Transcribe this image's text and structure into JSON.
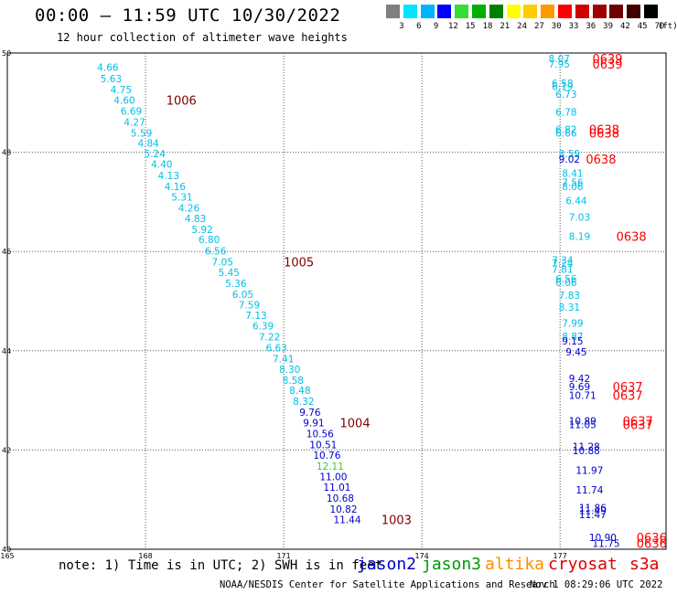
{
  "title": "00:00 — 11:59 UTC 10/30/2022",
  "subtitle": "12 hour collection of altimeter wave heights",
  "legend": {
    "unit": "(ft)",
    "bins": [
      {
        "label": "3",
        "color": "#7f7f7f"
      },
      {
        "label": "6",
        "color": "#00e5ff"
      },
      {
        "label": "9",
        "color": "#00b3ff"
      },
      {
        "label": "12",
        "color": "#0000ff"
      },
      {
        "label": "15",
        "color": "#33dd33"
      },
      {
        "label": "18",
        "color": "#00b000"
      },
      {
        "label": "21",
        "color": "#008000"
      },
      {
        "label": "24",
        "color": "#ffff00"
      },
      {
        "label": "27",
        "color": "#ffcc00"
      },
      {
        "label": "30",
        "color": "#ff9900"
      },
      {
        "label": "33",
        "color": "#ff0000"
      },
      {
        "label": "36",
        "color": "#d00000"
      },
      {
        "label": "39",
        "color": "#a00000"
      },
      {
        "label": "42",
        "color": "#700000"
      },
      {
        "label": "45",
        "color": "#400000"
      },
      {
        "label": "70",
        "color": "#000000"
      }
    ]
  },
  "axes": {
    "lon_ticks": [
      "165",
      "168",
      "171",
      "174",
      "177"
    ],
    "lat_ticks": [
      "50",
      "48",
      "46",
      "44",
      "42",
      "40"
    ],
    "lon_range": [
      165,
      179.3
    ],
    "lat_range": [
      40,
      50
    ]
  },
  "colors": {
    "cyan": "#00bfe5",
    "blue": "#0000cc",
    "green": "#33cc33",
    "red": "#ff0000",
    "maroon": "#800000"
  },
  "tracks": [
    {
      "name": "western-track",
      "marks": [
        {
          "lon": 166.95,
          "lat": 49.71,
          "text": "4.66",
          "color": "cyan"
        },
        {
          "lon": 167.02,
          "lat": 49.48,
          "text": "5.63",
          "color": "cyan"
        },
        {
          "lon": 167.24,
          "lat": 49.26,
          "text": "4.75",
          "color": "cyan"
        },
        {
          "lon": 167.31,
          "lat": 49.05,
          "text": "4.60",
          "color": "cyan"
        },
        {
          "lon": 167.46,
          "lat": 48.83,
          "text": "6.69",
          "color": "cyan"
        },
        {
          "lon": 167.53,
          "lat": 48.61,
          "text": "4.27",
          "color": "cyan"
        },
        {
          "lon": 167.68,
          "lat": 48.39,
          "text": "5.59",
          "color": "cyan"
        },
        {
          "lon": 167.83,
          "lat": 48.19,
          "text": "4.84",
          "color": "cyan"
        },
        {
          "lon": 167.97,
          "lat": 47.97,
          "text": "5.24",
          "color": "cyan"
        },
        {
          "lon": 168.12,
          "lat": 47.76,
          "text": "4.40",
          "color": "cyan"
        },
        {
          "lon": 168.27,
          "lat": 47.53,
          "text": "4.13",
          "color": "cyan"
        },
        {
          "lon": 168.41,
          "lat": 47.31,
          "text": "4.16",
          "color": "cyan"
        },
        {
          "lon": 168.56,
          "lat": 47.1,
          "text": "5.31",
          "color": "cyan"
        },
        {
          "lon": 168.71,
          "lat": 46.88,
          "text": "4.26",
          "color": "cyan"
        },
        {
          "lon": 168.85,
          "lat": 46.67,
          "text": "4.83",
          "color": "cyan"
        },
        {
          "lon": 169.0,
          "lat": 46.45,
          "text": "5.92",
          "color": "cyan"
        },
        {
          "lon": 169.15,
          "lat": 46.24,
          "text": "6.80",
          "color": "cyan"
        },
        {
          "lon": 169.29,
          "lat": 46.01,
          "text": "6.56",
          "color": "cyan"
        },
        {
          "lon": 169.44,
          "lat": 45.79,
          "text": "7.05",
          "color": "cyan"
        },
        {
          "lon": 169.58,
          "lat": 45.58,
          "text": "5.45",
          "color": "cyan"
        },
        {
          "lon": 169.73,
          "lat": 45.36,
          "text": "5.36",
          "color": "cyan"
        },
        {
          "lon": 169.88,
          "lat": 45.14,
          "text": "6.05",
          "color": "cyan"
        },
        {
          "lon": 170.02,
          "lat": 44.93,
          "text": "7.59",
          "color": "cyan"
        },
        {
          "lon": 170.17,
          "lat": 44.71,
          "text": "7.13",
          "color": "cyan"
        },
        {
          "lon": 170.32,
          "lat": 44.5,
          "text": "6.39",
          "color": "cyan"
        },
        {
          "lon": 170.46,
          "lat": 44.28,
          "text": "7.22",
          "color": "cyan"
        },
        {
          "lon": 170.61,
          "lat": 44.06,
          "text": "6.63",
          "color": "cyan"
        },
        {
          "lon": 170.76,
          "lat": 43.84,
          "text": "7.41",
          "color": "cyan"
        },
        {
          "lon": 170.9,
          "lat": 43.63,
          "text": "8.30",
          "color": "cyan"
        },
        {
          "lon": 170.97,
          "lat": 43.41,
          "text": "8.58",
          "color": "cyan"
        },
        {
          "lon": 171.12,
          "lat": 43.2,
          "text": "8.48",
          "color": "cyan"
        },
        {
          "lon": 171.2,
          "lat": 42.98,
          "text": "8.32",
          "color": "cyan"
        },
        {
          "lon": 171.34,
          "lat": 42.76,
          "text": "9.76",
          "color": "blue"
        },
        {
          "lon": 171.42,
          "lat": 42.55,
          "text": "9.91",
          "color": "blue"
        },
        {
          "lon": 171.49,
          "lat": 42.33,
          "text": "10.56",
          "color": "blue"
        },
        {
          "lon": 171.56,
          "lat": 42.11,
          "text": "10.51",
          "color": "blue"
        },
        {
          "lon": 171.64,
          "lat": 41.9,
          "text": "10.76",
          "color": "blue"
        },
        {
          "lon": 171.71,
          "lat": 41.68,
          "text": "12.11",
          "color": "green"
        },
        {
          "lon": 171.78,
          "lat": 41.46,
          "text": "11.00",
          "color": "blue"
        },
        {
          "lon": 171.86,
          "lat": 41.25,
          "text": "11.01",
          "color": "blue"
        },
        {
          "lon": 171.93,
          "lat": 41.03,
          "text": "10.68",
          "color": "blue"
        },
        {
          "lon": 172.0,
          "lat": 40.81,
          "text": "10.82",
          "color": "blue"
        },
        {
          "lon": 172.08,
          "lat": 40.6,
          "text": "11.44",
          "color": "blue"
        }
      ]
    },
    {
      "name": "eastern-track",
      "marks": [
        {
          "lon": 176.75,
          "lat": 49.89,
          "text": "8.07",
          "color": "cyan"
        },
        {
          "lon": 176.75,
          "lat": 49.78,
          "text": "7.95",
          "color": "cyan"
        },
        {
          "lon": 176.82,
          "lat": 49.39,
          "text": "6.58",
          "color": "cyan"
        },
        {
          "lon": 176.82,
          "lat": 49.33,
          "text": "6.19",
          "color": "cyan"
        },
        {
          "lon": 176.9,
          "lat": 49.17,
          "text": "6.73",
          "color": "cyan"
        },
        {
          "lon": 176.9,
          "lat": 48.81,
          "text": "6.78",
          "color": "cyan"
        },
        {
          "lon": 176.9,
          "lat": 48.46,
          "text": "6.82",
          "color": "cyan"
        },
        {
          "lon": 176.9,
          "lat": 48.39,
          "text": "6.66",
          "color": "cyan"
        },
        {
          "lon": 176.97,
          "lat": 47.97,
          "text": "8.59",
          "color": "cyan"
        },
        {
          "lon": 176.97,
          "lat": 47.86,
          "text": "9.02",
          "color": "blue"
        },
        {
          "lon": 177.04,
          "lat": 47.58,
          "text": "8.41",
          "color": "cyan"
        },
        {
          "lon": 177.04,
          "lat": 47.39,
          "text": "7.56",
          "color": "cyan"
        },
        {
          "lon": 177.04,
          "lat": 47.31,
          "text": "8.06",
          "color": "cyan"
        },
        {
          "lon": 177.12,
          "lat": 47.03,
          "text": "6.44",
          "color": "cyan"
        },
        {
          "lon": 177.19,
          "lat": 46.69,
          "text": "7.03",
          "color": "cyan"
        },
        {
          "lon": 177.19,
          "lat": 46.31,
          "text": "8.19",
          "color": "cyan"
        },
        {
          "lon": 176.82,
          "lat": 45.83,
          "text": "7.34",
          "color": "cyan"
        },
        {
          "lon": 176.82,
          "lat": 45.76,
          "text": "7.24",
          "color": "cyan"
        },
        {
          "lon": 176.82,
          "lat": 45.64,
          "text": "7.81",
          "color": "cyan"
        },
        {
          "lon": 176.9,
          "lat": 45.45,
          "text": "6.56",
          "color": "cyan"
        },
        {
          "lon": 176.9,
          "lat": 45.38,
          "text": "6.06",
          "color": "cyan"
        },
        {
          "lon": 176.97,
          "lat": 45.12,
          "text": "7.83",
          "color": "cyan"
        },
        {
          "lon": 176.97,
          "lat": 44.88,
          "text": "8.31",
          "color": "cyan"
        },
        {
          "lon": 177.04,
          "lat": 44.56,
          "text": "7.99",
          "color": "cyan"
        },
        {
          "lon": 177.04,
          "lat": 44.29,
          "text": "8.87",
          "color": "cyan"
        },
        {
          "lon": 177.04,
          "lat": 44.2,
          "text": "9.15",
          "color": "blue"
        },
        {
          "lon": 177.12,
          "lat": 43.98,
          "text": "9.45",
          "color": "blue"
        },
        {
          "lon": 177.19,
          "lat": 43.44,
          "text": "9.42",
          "color": "blue"
        },
        {
          "lon": 177.19,
          "lat": 43.28,
          "text": "9.69",
          "color": "blue"
        },
        {
          "lon": 177.19,
          "lat": 43.1,
          "text": "10.71",
          "color": "blue"
        },
        {
          "lon": 177.19,
          "lat": 42.59,
          "text": "10.89",
          "color": "blue"
        },
        {
          "lon": 177.19,
          "lat": 42.51,
          "text": "11.05",
          "color": "blue"
        },
        {
          "lon": 177.27,
          "lat": 42.07,
          "text": "11.28",
          "color": "blue"
        },
        {
          "lon": 177.27,
          "lat": 41.99,
          "text": "10.88",
          "color": "blue"
        },
        {
          "lon": 177.34,
          "lat": 41.59,
          "text": "11.97",
          "color": "blue"
        },
        {
          "lon": 177.34,
          "lat": 41.2,
          "text": "11.74",
          "color": "blue"
        },
        {
          "lon": 177.41,
          "lat": 40.84,
          "text": "11.86",
          "color": "blue"
        },
        {
          "lon": 177.41,
          "lat": 40.78,
          "text": "11.49",
          "color": "blue"
        },
        {
          "lon": 177.41,
          "lat": 40.7,
          "text": "11.47",
          "color": "blue"
        },
        {
          "lon": 177.63,
          "lat": 40.24,
          "text": "10.90",
          "color": "blue"
        },
        {
          "lon": 177.7,
          "lat": 40.12,
          "text": "11.75",
          "color": "blue"
        }
      ]
    }
  ],
  "time_labels": [
    {
      "lon": 168.45,
      "lat": 49.05,
      "text": "1006",
      "color": "maroon"
    },
    {
      "lon": 171.0,
      "lat": 45.79,
      "text": "1005",
      "color": "maroon"
    },
    {
      "lon": 172.22,
      "lat": 42.55,
      "text": "1004",
      "color": "maroon"
    },
    {
      "lon": 173.12,
      "lat": 40.6,
      "text": "1003",
      "color": "maroon"
    },
    {
      "lon": 177.7,
      "lat": 49.89,
      "text": "0639",
      "color": "red"
    },
    {
      "lon": 177.7,
      "lat": 49.78,
      "text": "0639",
      "color": "red"
    },
    {
      "lon": 177.63,
      "lat": 48.46,
      "text": "0638",
      "color": "red"
    },
    {
      "lon": 177.63,
      "lat": 48.39,
      "text": "0638",
      "color": "red"
    },
    {
      "lon": 177.56,
      "lat": 47.86,
      "text": "0638",
      "color": "red"
    },
    {
      "lon": 178.22,
      "lat": 46.31,
      "text": "0638",
      "color": "red"
    },
    {
      "lon": 178.14,
      "lat": 43.28,
      "text": "0637",
      "color": "red"
    },
    {
      "lon": 178.14,
      "lat": 43.1,
      "text": "0637",
      "color": "red"
    },
    {
      "lon": 178.36,
      "lat": 42.59,
      "text": "0637",
      "color": "red"
    },
    {
      "lon": 178.36,
      "lat": 42.51,
      "text": "0637",
      "color": "red"
    },
    {
      "lon": 178.66,
      "lat": 40.24,
      "text": "0636",
      "color": "red"
    },
    {
      "lon": 178.66,
      "lat": 40.12,
      "text": "0636",
      "color": "red"
    }
  ],
  "footer": {
    "note": "note: 1) Time is in UTC; 2) SWH is in feet",
    "satellites": [
      {
        "name": "jason2",
        "color": "#0000cc"
      },
      {
        "name": "jason3",
        "color": "#009900"
      },
      {
        "name": "altika",
        "color": "#ff8c00"
      },
      {
        "name": "cryosat",
        "color": "#dd0000"
      },
      {
        "name": "s3a",
        "color": "#dd0000"
      }
    ],
    "credit": "NOAA/NESDIS Center for Satellite Applications and Research",
    "generated": "Nov  1 08:29:06 UTC 2022"
  }
}
